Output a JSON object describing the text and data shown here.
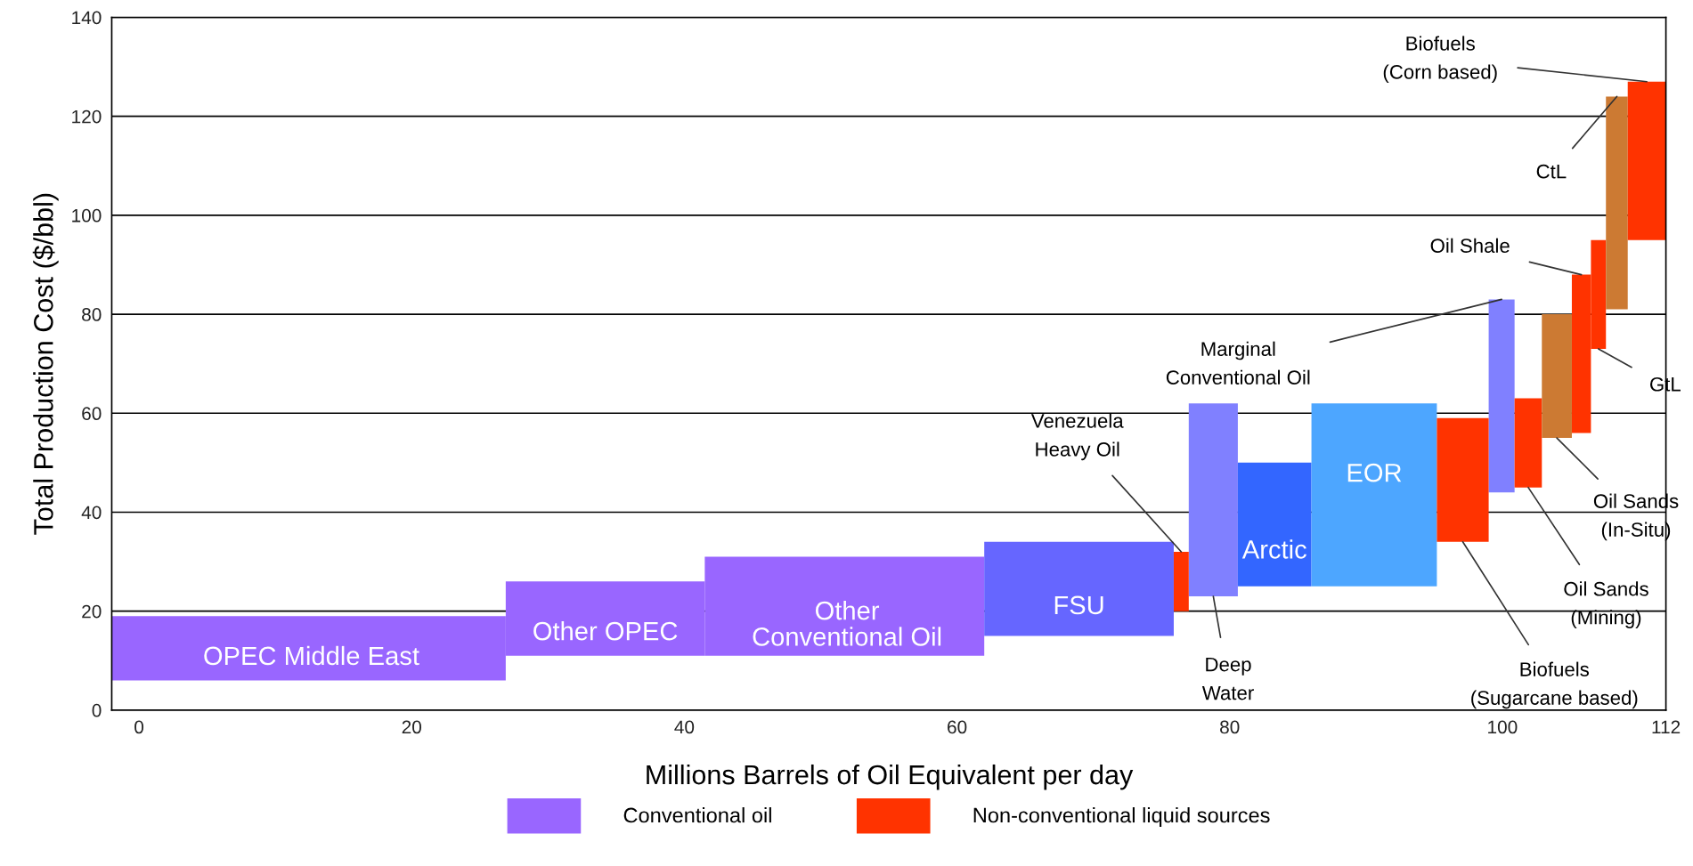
{
  "chart_data": {
    "type": "bar",
    "xlabel": "Millions Barrels of Oil Equivalent per day",
    "ylabel": "Total Production Cost ($/bbl)",
    "xlim": [
      -2,
      112
    ],
    "xticks": [
      0,
      20,
      40,
      60,
      80,
      100,
      112
    ],
    "ylim": [
      0,
      140
    ],
    "yticks": [
      0,
      20,
      40,
      60,
      80,
      100,
      120,
      140
    ],
    "grid": "y",
    "legend": "bottom",
    "series": [
      {
        "name": "Conventional oil",
        "color": "#9966ff",
        "x": [
          12.45,
          34.2,
          51.75,
          68.95,
          78.8,
          83.3,
          90.6,
          99.95
        ],
        "base": [
          6,
          11,
          11,
          15,
          23,
          25,
          25,
          44
        ],
        "values": [
          13,
          15,
          20,
          19,
          39,
          25,
          37,
          39
        ],
        "colors": [
          "#9966ff",
          "#9966ff",
          "#9966ff",
          "#6666ff",
          "#8080ff",
          "#3366ff",
          "#4da6ff",
          "#8080ff"
        ]
      },
      {
        "name": "Non-conventional liquid sources",
        "color": "#ff3300",
        "x": [
          76.45,
          97.1,
          101.9,
          104.0,
          105.8,
          107.05,
          108.4,
          110.6
        ],
        "base": [
          20,
          34,
          45,
          55,
          56,
          73,
          81,
          95
        ],
        "values": [
          12,
          25,
          18,
          25,
          32,
          22,
          43,
          32
        ],
        "colors": [
          "#ff3300",
          "#ff3300",
          "#ff3300",
          "#cc7a33",
          "#ff3300",
          "#ff3300",
          "#cc7a33",
          "#ff3300"
        ]
      }
    ],
    "annotations": [
      {
        "text": "OPEC Middle East",
        "x": 12.45,
        "y": 19
      },
      {
        "text": "Other OPEC",
        "x": 34.2,
        "y": 26
      },
      {
        "text": "Other\nConventional Oil",
        "x": 51.75,
        "y": 31
      },
      {
        "text": "FSU",
        "x": 68.95,
        "y": 34
      },
      {
        "text": "Arctic",
        "x": 83.3,
        "y": 50
      },
      {
        "text": "EOR",
        "x": 90.6,
        "y": 62
      },
      {
        "text": "Venezuela\nHeavy Oil",
        "x": 76.45,
        "y": 32
      },
      {
        "text": "Deep\nWater",
        "x": 78.8,
        "y": 23
      },
      {
        "text": "Marginal\nConventional Oil",
        "x": 99.95,
        "y": 83
      },
      {
        "text": "Biofuels\n(Sugarcane based)",
        "x": 97.1,
        "y": 34
      },
      {
        "text": "Oil Sands\n(Mining)",
        "x": 101.9,
        "y": 45
      },
      {
        "text": "Oil Sands\n(In-Situ)",
        "x": 104.0,
        "y": 55
      },
      {
        "text": "GtL",
        "x": 107.05,
        "y": 73
      },
      {
        "text": "Oil Shale",
        "x": 105.8,
        "y": 88
      },
      {
        "text": "CtL",
        "x": 108.4,
        "y": 124
      },
      {
        "text": "Biofuels\n(Corn based)",
        "x": 110.6,
        "y": 127
      }
    ]
  }
}
